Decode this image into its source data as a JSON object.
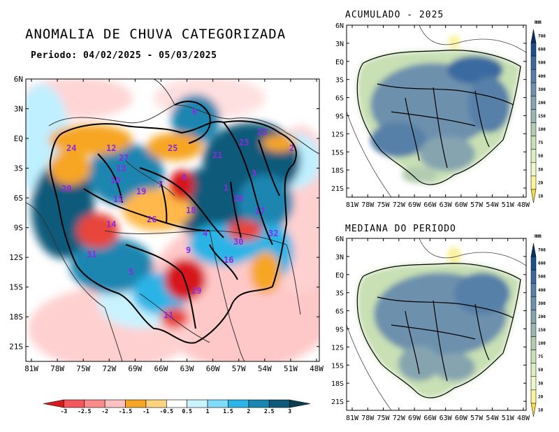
{
  "main_map": {
    "title": "ANOMALIA DE CHUVA CATEGORIZADA",
    "period": "Periodo: 04/02/2025 - 05/03/2025",
    "lat_ticks": [
      "6N",
      "3N",
      "EQ",
      "3S",
      "6S",
      "9S",
      "12S",
      "15S",
      "18S",
      "21S"
    ],
    "lon_ticks": [
      "81W",
      "78W",
      "75W",
      "72W",
      "69W",
      "66W",
      "63W",
      "60W",
      "57W",
      "54W",
      "51W",
      "48W"
    ],
    "basin_labels": [
      "24",
      "12",
      "25",
      "23",
      "22",
      "2",
      "21",
      "20",
      "13",
      "10",
      "3",
      "6",
      "19",
      "1",
      "28",
      "15",
      "26",
      "18",
      "4",
      "17",
      "16",
      "30",
      "32",
      "31",
      "5",
      "14",
      "9",
      "29",
      "11",
      "7",
      "8",
      "27"
    ],
    "colorbar": {
      "ticks": [
        "-3",
        "-2.5",
        "-2",
        "-1.5",
        "-1",
        "-0.5",
        "0.5",
        "1",
        "1.5",
        "2",
        "2.5",
        "3"
      ],
      "colors": [
        "#d7191c",
        "#f4565b",
        "#fb8a8a",
        "#ffc0c0",
        "#f6a623",
        "#ffd27f",
        "#ffffff",
        "#c9f3ff",
        "#7fdcff",
        "#2bb4e6",
        "#1b86b0",
        "#0f5a7a",
        "#083d52"
      ]
    }
  },
  "acumulado_map": {
    "title": "ACUMULADO - 2025",
    "lat_ticks": [
      "6N",
      "3N",
      "EQ",
      "3S",
      "6S",
      "9S",
      "12S",
      "15S",
      "18S",
      "21S"
    ],
    "lon_ticks": [
      "81W",
      "78W",
      "75W",
      "72W",
      "69W",
      "66W",
      "63W",
      "60W",
      "57W",
      "54W",
      "51W",
      "48W"
    ]
  },
  "mediana_map": {
    "title": "MEDIANA DO PERIODO",
    "lat_ticks": [
      "6N",
      "3N",
      "EQ",
      "3S",
      "6S",
      "9S",
      "12S",
      "15S",
      "18S",
      "21S"
    ],
    "lon_ticks": [
      "81W",
      "78W",
      "75W",
      "72W",
      "69W",
      "66W",
      "63W",
      "60W",
      "57W",
      "54W",
      "51W",
      "48W"
    ]
  },
  "precip_colorbar": {
    "unit": "mm",
    "ticks": [
      "700",
      "600",
      "500",
      "400",
      "300",
      "200",
      "150",
      "100",
      "75",
      "50",
      "30",
      "20",
      "10"
    ],
    "colors": [
      "#08306b",
      "#1c4f8c",
      "#3a6aa0",
      "#5680a8",
      "#6d91ad",
      "#86a4b0",
      "#9ab5b2",
      "#b3ccb0",
      "#c8e0b4",
      "#dbeec0",
      "#eef7c8",
      "#fbf29a",
      "#f9d949"
    ]
  }
}
